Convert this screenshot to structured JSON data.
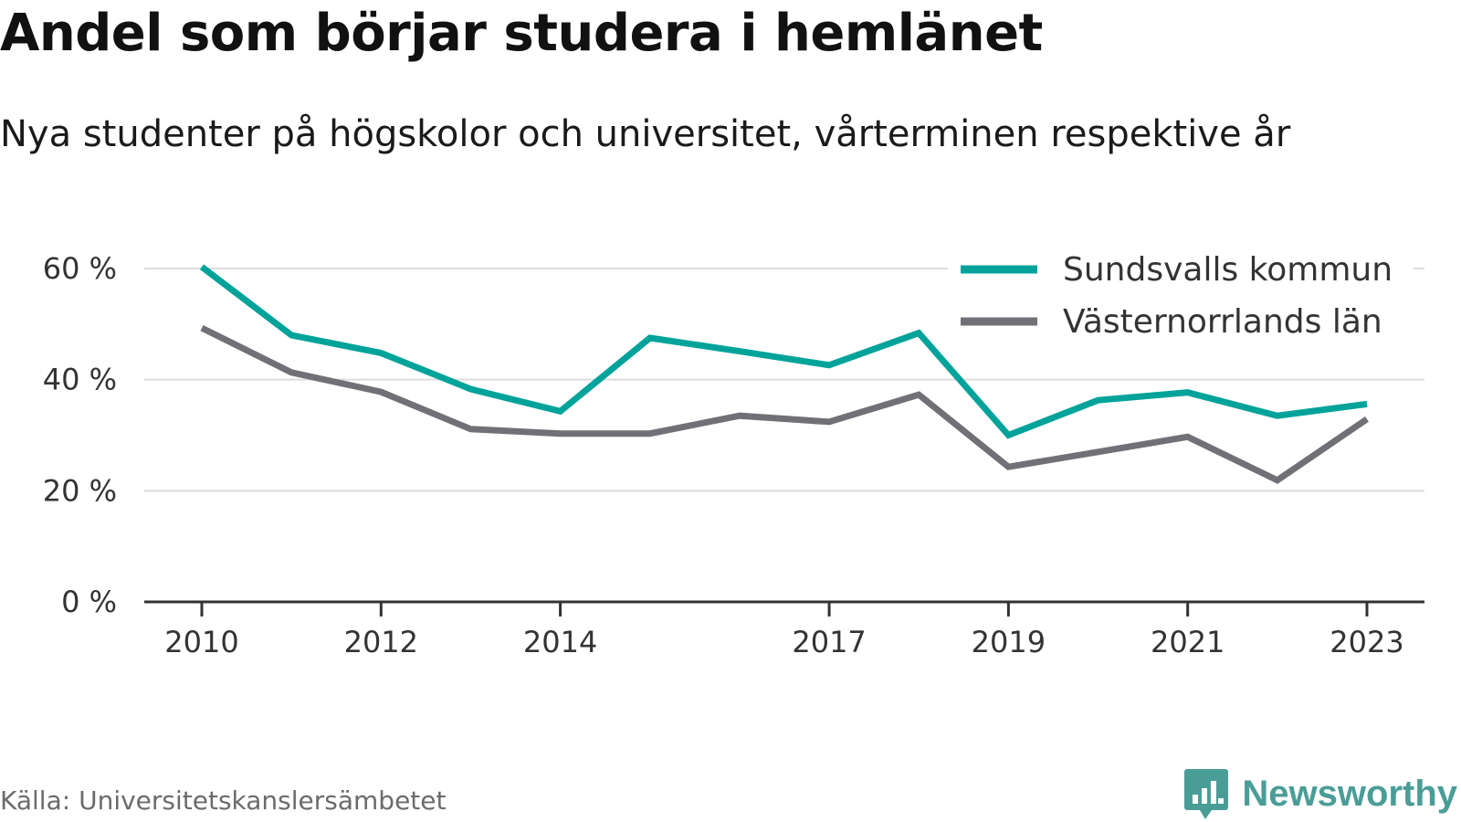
{
  "title": "Andel som börjar studera i hemlänet",
  "subtitle": "Nya studenter på högskolor och universitet, vårterminen respektive år",
  "source": "Källa: Universitetskanslersämbetet",
  "brand": "Newsworthy",
  "colors": {
    "series_1": "#00a39a",
    "series_2": "#707077",
    "grid": "#dddddd",
    "axis": "#333333",
    "brand": "#4a9d97"
  },
  "chart_data": {
    "type": "line",
    "x": [
      2010,
      2011,
      2012,
      2013,
      2014,
      2015,
      2016,
      2017,
      2018,
      2019,
      2020,
      2021,
      2022,
      2023
    ],
    "x_ticks": [
      "2010",
      "2012",
      "2014",
      "2017",
      "2019",
      "2021",
      "2023"
    ],
    "y_ticks": [
      "0 %",
      "20 %",
      "40 %",
      "60 %"
    ],
    "ylim": [
      0,
      60
    ],
    "grid": true,
    "legend_position": "top-right",
    "series": [
      {
        "name": "Sundsvalls kommun",
        "color": "#00a39a",
        "values": [
          60.3,
          48.0,
          44.8,
          38.3,
          34.3,
          47.5,
          45.1,
          42.6,
          48.4,
          30.0,
          36.3,
          37.7,
          33.5,
          35.6
        ]
      },
      {
        "name": "Västernorrlands län",
        "color": "#707077",
        "values": [
          49.3,
          41.3,
          37.8,
          31.1,
          30.3,
          30.3,
          33.5,
          32.4,
          37.3,
          24.3,
          27.0,
          29.7,
          21.9,
          32.9
        ]
      }
    ]
  }
}
